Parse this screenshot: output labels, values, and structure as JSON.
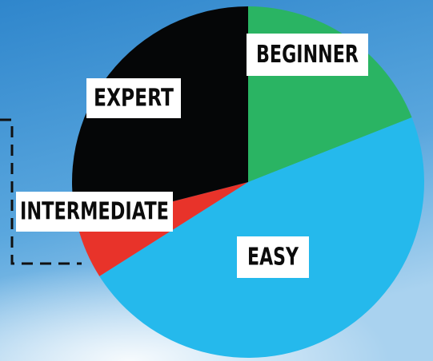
{
  "chart_data": {
    "type": "pie",
    "categories": [
      "BEGINNER",
      "EASY",
      "INTERMEDIATE",
      "EXPERT"
    ],
    "values": [
      19,
      47,
      5,
      29
    ],
    "colors": [
      "#2ab463",
      "#25b9ec",
      "#e8332a",
      "#050607"
    ]
  }
}
